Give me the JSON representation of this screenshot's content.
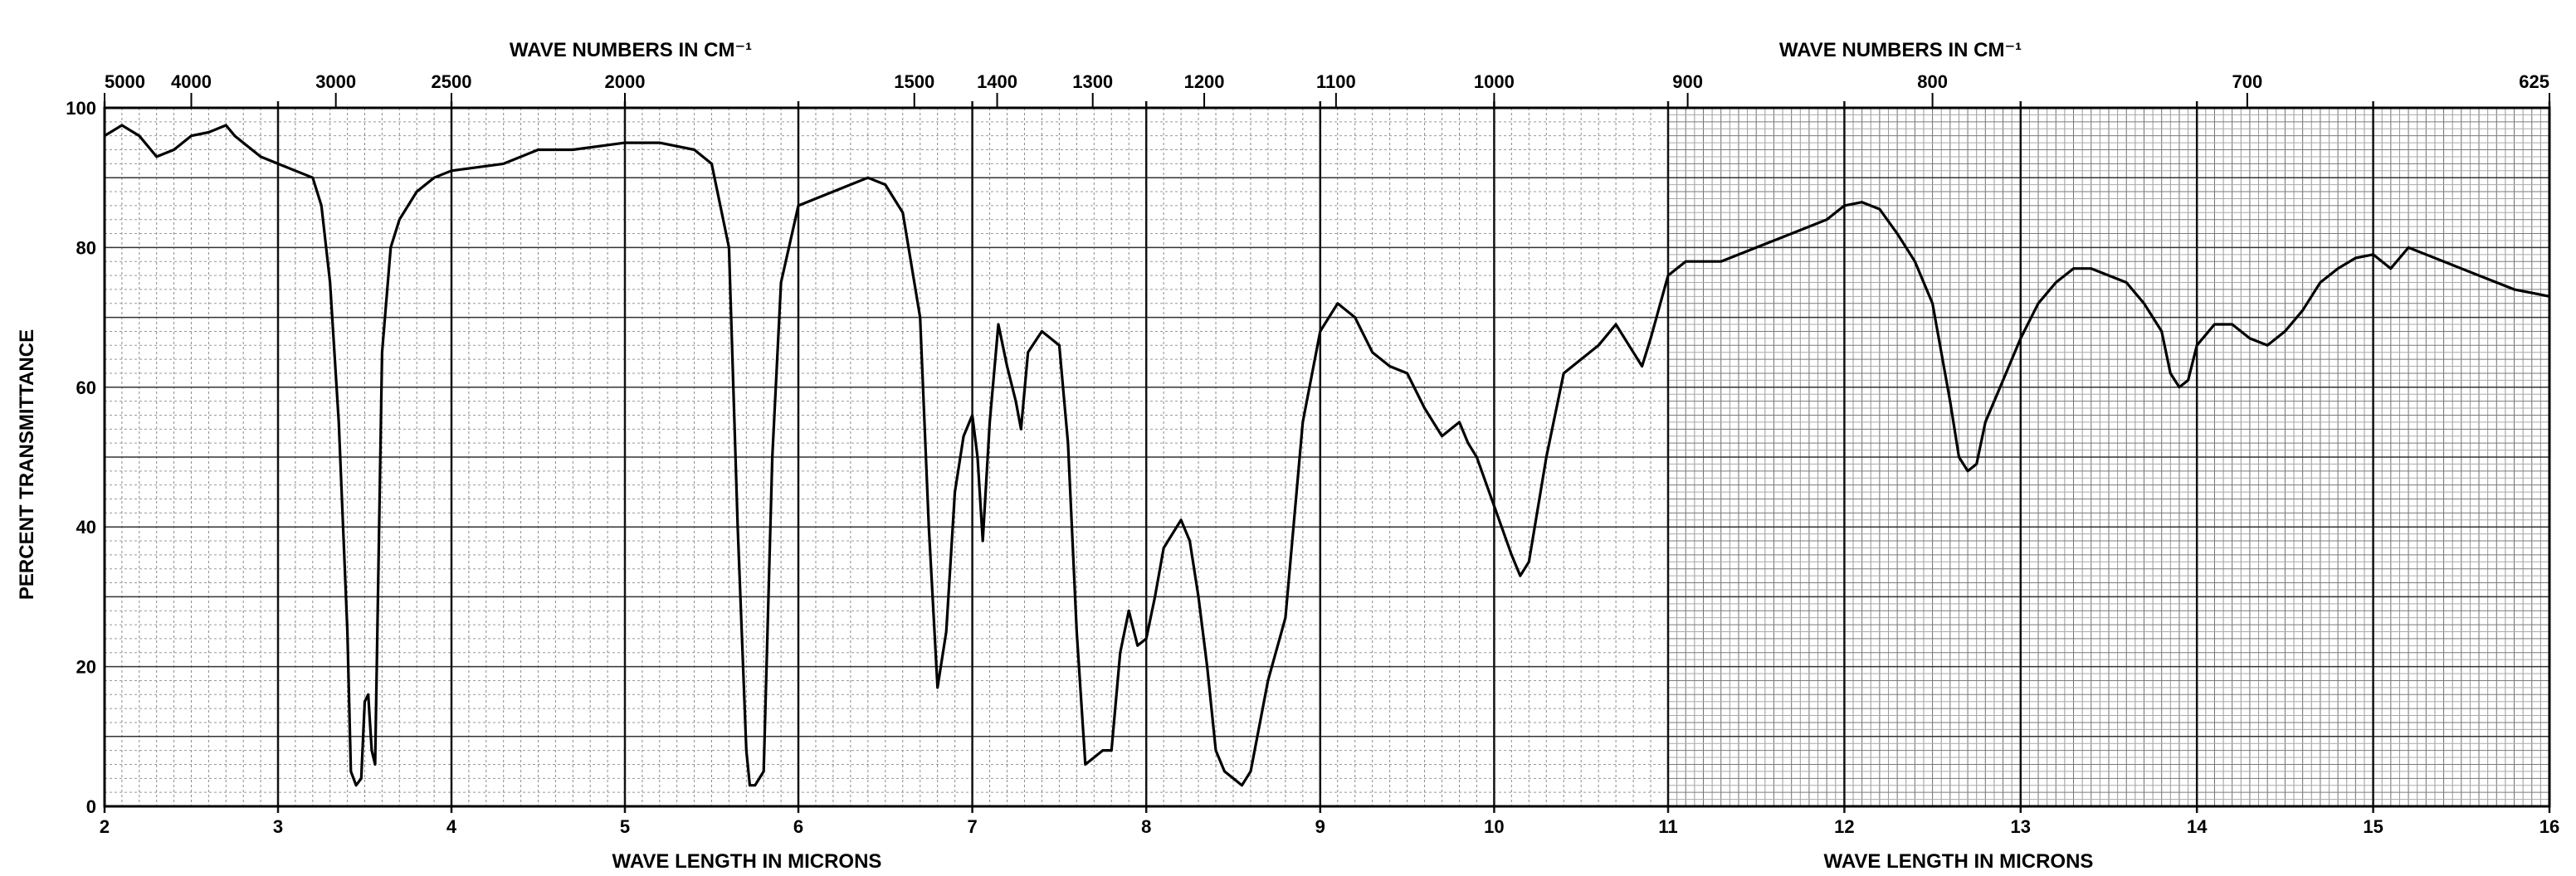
{
  "chart_data": {
    "type": "line",
    "top_axis_label_left": "WAVE NUMBERS IN CM⁻¹",
    "top_axis_label_right": "WAVE NUMBERS IN CM⁻¹",
    "bottom_axis_label_left": "WAVE LENGTH IN MICRONS",
    "bottom_axis_label_right": "WAVE LENGTH IN MICRONS",
    "ylabel": "PERCENT TRANSMITTANCE",
    "xlim": [
      2,
      16
    ],
    "ylim": [
      0,
      100
    ],
    "x_unit": "microns",
    "grid": true,
    "x_ticks": [
      "2",
      "3",
      "4",
      "5",
      "6",
      "7",
      "8",
      "9",
      "10",
      "11",
      "12",
      "13",
      "14",
      "15",
      "16"
    ],
    "y_ticks": [
      "0",
      "20",
      "40",
      "60",
      "80",
      "100"
    ],
    "top_ticks": [
      {
        "label": "5000",
        "wn": 5000
      },
      {
        "label": "4000",
        "wn": 4000
      },
      {
        "label": "3000",
        "wn": 3000
      },
      {
        "label": "2500",
        "wn": 2500
      },
      {
        "label": "2000",
        "wn": 2000
      },
      {
        "label": "1500",
        "wn": 1500
      },
      {
        "label": "1400",
        "wn": 1400
      },
      {
        "label": "1300",
        "wn": 1300
      },
      {
        "label": "1200",
        "wn": 1200
      },
      {
        "label": "1100",
        "wn": 1100
      },
      {
        "label": "1000",
        "wn": 1000
      },
      {
        "label": "900",
        "wn": 900
      },
      {
        "label": "800",
        "wn": 800
      },
      {
        "label": "700",
        "wn": 700
      },
      {
        "label": "625",
        "wn": 625
      }
    ],
    "series": [
      {
        "values": [
          [
            2.0,
            96
          ],
          [
            2.1,
            97.5
          ],
          [
            2.2,
            96
          ],
          [
            2.3,
            93
          ],
          [
            2.4,
            94
          ],
          [
            2.5,
            96
          ],
          [
            2.6,
            96.5
          ],
          [
            2.7,
            97.5
          ],
          [
            2.75,
            96
          ],
          [
            2.8,
            95
          ],
          [
            2.9,
            93
          ],
          [
            3.0,
            92
          ],
          [
            3.1,
            91
          ],
          [
            3.2,
            90
          ],
          [
            3.25,
            86
          ],
          [
            3.3,
            75
          ],
          [
            3.35,
            55
          ],
          [
            3.4,
            25
          ],
          [
            3.42,
            5
          ],
          [
            3.45,
            3
          ],
          [
            3.48,
            4
          ],
          [
            3.5,
            15
          ],
          [
            3.52,
            16
          ],
          [
            3.54,
            8
          ],
          [
            3.56,
            6
          ],
          [
            3.6,
            65
          ],
          [
            3.65,
            80
          ],
          [
            3.7,
            84
          ],
          [
            3.8,
            88
          ],
          [
            3.9,
            90
          ],
          [
            4.0,
            91
          ],
          [
            4.3,
            92
          ],
          [
            4.5,
            94
          ],
          [
            4.7,
            94
          ],
          [
            5.0,
            95
          ],
          [
            5.2,
            95
          ],
          [
            5.4,
            94
          ],
          [
            5.5,
            92
          ],
          [
            5.6,
            80
          ],
          [
            5.65,
            40
          ],
          [
            5.7,
            8
          ],
          [
            5.72,
            3
          ],
          [
            5.75,
            3
          ],
          [
            5.8,
            5
          ],
          [
            5.85,
            50
          ],
          [
            5.9,
            75
          ],
          [
            6.0,
            86
          ],
          [
            6.2,
            88
          ],
          [
            6.4,
            90
          ],
          [
            6.5,
            89
          ],
          [
            6.6,
            85
          ],
          [
            6.7,
            70
          ],
          [
            6.75,
            40
          ],
          [
            6.8,
            17
          ],
          [
            6.85,
            25
          ],
          [
            6.9,
            45
          ],
          [
            6.95,
            53
          ],
          [
            7.0,
            56
          ],
          [
            7.03,
            50
          ],
          [
            7.06,
            38
          ],
          [
            7.1,
            55
          ],
          [
            7.15,
            69
          ],
          [
            7.2,
            63
          ],
          [
            7.25,
            58
          ],
          [
            7.28,
            54
          ],
          [
            7.32,
            65
          ],
          [
            7.4,
            68
          ],
          [
            7.5,
            66
          ],
          [
            7.55,
            52
          ],
          [
            7.6,
            25
          ],
          [
            7.65,
            6
          ],
          [
            7.7,
            7
          ],
          [
            7.75,
            8
          ],
          [
            7.8,
            8
          ],
          [
            7.85,
            22
          ],
          [
            7.9,
            28
          ],
          [
            7.95,
            23
          ],
          [
            8.0,
            24
          ],
          [
            8.05,
            30
          ],
          [
            8.1,
            37
          ],
          [
            8.2,
            41
          ],
          [
            8.25,
            38
          ],
          [
            8.3,
            30
          ],
          [
            8.35,
            20
          ],
          [
            8.4,
            8
          ],
          [
            8.45,
            5
          ],
          [
            8.5,
            4
          ],
          [
            8.55,
            3
          ],
          [
            8.6,
            5
          ],
          [
            8.7,
            18
          ],
          [
            8.8,
            27
          ],
          [
            8.9,
            55
          ],
          [
            9.0,
            68
          ],
          [
            9.1,
            72
          ],
          [
            9.2,
            70
          ],
          [
            9.3,
            65
          ],
          [
            9.4,
            63
          ],
          [
            9.5,
            62
          ],
          [
            9.6,
            57
          ],
          [
            9.7,
            53
          ],
          [
            9.8,
            55
          ],
          [
            9.85,
            52
          ],
          [
            9.9,
            50
          ],
          [
            10.0,
            43
          ],
          [
            10.1,
            36
          ],
          [
            10.15,
            33
          ],
          [
            10.2,
            35
          ],
          [
            10.3,
            50
          ],
          [
            10.4,
            62
          ],
          [
            10.5,
            64
          ],
          [
            10.6,
            66
          ],
          [
            10.7,
            69
          ],
          [
            10.8,
            65
          ],
          [
            10.85,
            63
          ],
          [
            10.9,
            67
          ],
          [
            11.0,
            76
          ],
          [
            11.1,
            78
          ],
          [
            11.3,
            78
          ],
          [
            11.5,
            80
          ],
          [
            11.7,
            82
          ],
          [
            11.9,
            84
          ],
          [
            12.0,
            86
          ],
          [
            12.1,
            86.5
          ],
          [
            12.2,
            85.5
          ],
          [
            12.3,
            82
          ],
          [
            12.4,
            78
          ],
          [
            12.5,
            72
          ],
          [
            12.6,
            58
          ],
          [
            12.65,
            50
          ],
          [
            12.7,
            48
          ],
          [
            12.75,
            49
          ],
          [
            12.8,
            55
          ],
          [
            12.9,
            61
          ],
          [
            13.0,
            67
          ],
          [
            13.1,
            72
          ],
          [
            13.2,
            75
          ],
          [
            13.3,
            77
          ],
          [
            13.4,
            77
          ],
          [
            13.5,
            76
          ],
          [
            13.6,
            75
          ],
          [
            13.7,
            72
          ],
          [
            13.8,
            68
          ],
          [
            13.85,
            62
          ],
          [
            13.9,
            60
          ],
          [
            13.95,
            61
          ],
          [
            14.0,
            66
          ],
          [
            14.1,
            69
          ],
          [
            14.2,
            69
          ],
          [
            14.3,
            67
          ],
          [
            14.4,
            66
          ],
          [
            14.5,
            68
          ],
          [
            14.6,
            71
          ],
          [
            14.7,
            75
          ],
          [
            14.8,
            77
          ],
          [
            14.9,
            78.5
          ],
          [
            15.0,
            79
          ],
          [
            15.1,
            77
          ],
          [
            15.2,
            80
          ],
          [
            15.3,
            79
          ],
          [
            15.4,
            78
          ],
          [
            15.5,
            77
          ],
          [
            15.6,
            76
          ],
          [
            15.7,
            75
          ],
          [
            15.8,
            74
          ],
          [
            15.9,
            73.5
          ],
          [
            16.0,
            73
          ]
        ]
      }
    ]
  }
}
